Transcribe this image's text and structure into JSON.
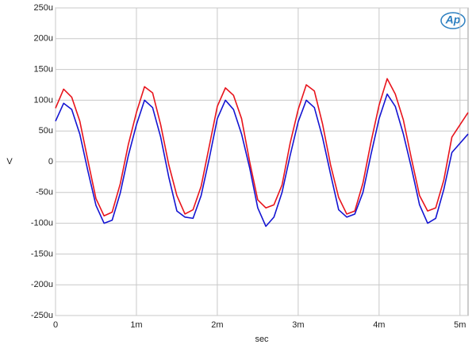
{
  "chart_data": {
    "type": "line",
    "logo": "Ap",
    "x_label": "sec",
    "y_label": "V",
    "xlim": [
      0,
      0.0051
    ],
    "ylim": [
      -0.00025,
      0.00025
    ],
    "xticks": [
      0,
      {
        "value": 0.001,
        "label": "1m"
      },
      {
        "value": 0.002,
        "label": "2m"
      },
      {
        "value": 0.003,
        "label": "3m"
      },
      {
        "value": 0.004,
        "label": "4m"
      },
      {
        "value": 0.005,
        "label": "5m"
      }
    ],
    "yticks": [
      {
        "value": 0.00025,
        "label": "250u"
      },
      {
        "value": 0.0002,
        "label": "200u"
      },
      {
        "value": 0.00015,
        "label": "150u"
      },
      {
        "value": 0.0001,
        "label": "100u"
      },
      {
        "value": 5e-05,
        "label": "50u"
      },
      0,
      {
        "value": -5e-05,
        "label": "-50u"
      },
      {
        "value": -0.0001,
        "label": "-100u"
      },
      {
        "value": -0.00015,
        "label": "-150u"
      },
      {
        "value": -0.0002,
        "label": "-200u"
      },
      {
        "value": -0.00025,
        "label": "-250u"
      }
    ],
    "grid": true,
    "x": [
      0,
      0.0001,
      0.0002,
      0.0003,
      0.0004,
      0.0005,
      0.0006,
      0.0007,
      0.0008,
      0.0009,
      0.001,
      0.0011,
      0.0012,
      0.0013,
      0.0014,
      0.0015,
      0.0016,
      0.0017,
      0.0018,
      0.0019,
      0.002,
      0.0021,
      0.0022,
      0.0023,
      0.0024,
      0.0025,
      0.0026,
      0.0027,
      0.0028,
      0.0029,
      0.003,
      0.0031,
      0.0032,
      0.0033,
      0.0034,
      0.0035,
      0.0036,
      0.0037,
      0.0038,
      0.0039,
      0.004,
      0.0041,
      0.0042,
      0.0043,
      0.0044,
      0.0045,
      0.0046,
      0.0047,
      0.0048,
      0.0049,
      0.005,
      0.0051
    ],
    "series": [
      {
        "color": "#e8141c",
        "values": [
          8.7e-05,
          0.000118,
          0.000105,
          6.6e-05,
          2e-06,
          -6e-05,
          -8.8e-05,
          -8.2e-05,
          -3.6e-05,
          2.8e-05,
          8e-05,
          0.000122,
          0.000112,
          6e-05,
          -5e-06,
          -5.5e-05,
          -8.5e-05,
          -7.8e-05,
          -4e-05,
          2.5e-05,
          9e-05,
          0.00012,
          0.000108,
          7e-05,
          0,
          -6.2e-05,
          -7.5e-05,
          -7e-05,
          -3.8e-05,
          3e-05,
          8.5e-05,
          0.000125,
          0.000115,
          6.2e-05,
          -5e-06,
          -5.8e-05,
          -8.5e-05,
          -8e-05,
          -3.5e-05,
          3.2e-05,
          9.2e-05,
          0.000135,
          0.00011,
          6.8e-05,
          5e-06,
          -5.5e-05,
          -8e-05,
          -7.5e-05,
          -3e-05,
          4e-05,
          6e-05,
          8e-05
        ]
      },
      {
        "color": "#1414d2",
        "values": [
          6.6e-05,
          9.5e-05,
          8.5e-05,
          4.5e-05,
          -1.5e-05,
          -7.1e-05,
          -0.0001,
          -9.5e-05,
          -5.1e-05,
          1e-05,
          6e-05,
          0.0001,
          8.8e-05,
          4e-05,
          -2.5e-05,
          -8e-05,
          -9e-05,
          -9.2e-05,
          -5.5e-05,
          5e-06,
          7e-05,
          0.0001,
          8.5e-05,
          4.5e-05,
          -1e-05,
          -7.5e-05,
          -0.000105,
          -9e-05,
          -5e-05,
          1e-05,
          6.5e-05,
          0.0001,
          8.8e-05,
          4e-05,
          -2e-05,
          -7.8e-05,
          -9e-05,
          -8.5e-05,
          -5e-05,
          1.2e-05,
          7e-05,
          0.00011,
          9e-05,
          4.5e-05,
          -1e-05,
          -7e-05,
          -0.0001,
          -9.2e-05,
          -4.5e-05,
          1.5e-05,
          3e-05,
          4.5e-05
        ]
      }
    ]
  }
}
